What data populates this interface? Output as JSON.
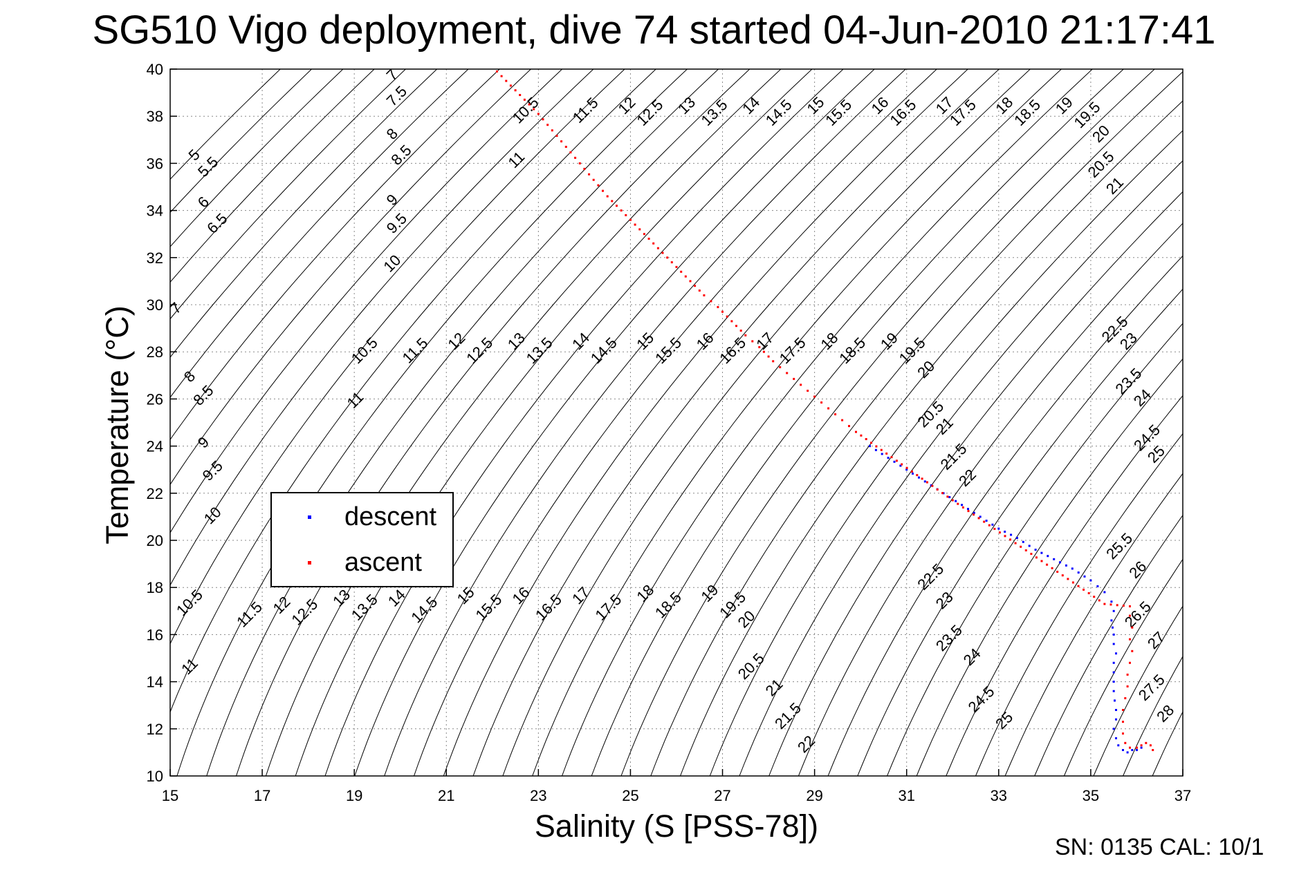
{
  "title": "SG510 Vigo deployment, dive 74 started 04-Jun-2010 21:17:41",
  "footer": "SN: 0135  CAL: 10/1",
  "legend": {
    "descent": "descent",
    "ascent": "ascent"
  },
  "colors": {
    "descent": "#0000ff",
    "ascent": "#ff0000",
    "contour": "#000000",
    "grid": "#888888"
  },
  "chart_data": {
    "type": "scatter",
    "title": "SG510 Vigo deployment, dive 74 started 04-Jun-2010 21:17:41",
    "xlabel": "Salinity (S [PSS-78])",
    "ylabel": "Temperature (°C)",
    "xlim": [
      15,
      37
    ],
    "ylim": [
      10,
      40
    ],
    "xticks": [
      15,
      17,
      19,
      21,
      23,
      25,
      27,
      29,
      31,
      33,
      35,
      37
    ],
    "yticks": [
      10,
      12,
      14,
      16,
      18,
      20,
      22,
      24,
      26,
      28,
      30,
      32,
      34,
      36,
      38,
      40
    ],
    "grid": true,
    "legend_position": "lower-left",
    "density_contours": [
      5,
      5.5,
      6,
      6.5,
      7,
      7.5,
      8,
      8.5,
      9,
      9.5,
      10,
      10.5,
      11,
      11.5,
      12,
      12.5,
      13,
      13.5,
      14,
      14.5,
      15,
      15.5,
      16,
      16.5,
      17,
      17.5,
      18,
      18.5,
      19,
      19.5,
      20,
      20.5,
      21,
      21.5,
      22,
      22.5,
      23,
      23.5,
      24,
      24.5,
      25,
      25.5,
      26,
      26.5,
      27,
      27.5,
      28
    ],
    "contour_labels": [
      {
        "text": "5",
        "x": 15.6,
        "y": 36.2
      },
      {
        "text": "5.5",
        "x": 15.9,
        "y": 35.7
      },
      {
        "text": "6",
        "x": 15.8,
        "y": 34.2
      },
      {
        "text": "6.5",
        "x": 16.1,
        "y": 33.3
      },
      {
        "text": "7",
        "x": 15.2,
        "y": 29.7
      },
      {
        "text": "8",
        "x": 15.5,
        "y": 26.8
      },
      {
        "text": "8.5",
        "x": 15.8,
        "y": 26.0
      },
      {
        "text": "9",
        "x": 15.8,
        "y": 24.0
      },
      {
        "text": "9.5",
        "x": 16.0,
        "y": 22.8
      },
      {
        "text": "10",
        "x": 16.0,
        "y": 20.9
      },
      {
        "text": "10.5",
        "x": 15.5,
        "y": 17.2
      },
      {
        "text": "11",
        "x": 15.5,
        "y": 14.5
      },
      {
        "text": "11.5",
        "x": 16.8,
        "y": 16.7
      },
      {
        "text": "12",
        "x": 17.5,
        "y": 17.1
      },
      {
        "text": "12.5",
        "x": 18.0,
        "y": 16.8
      },
      {
        "text": "13",
        "x": 18.8,
        "y": 17.4
      },
      {
        "text": "13.5",
        "x": 19.3,
        "y": 17.0
      },
      {
        "text": "14",
        "x": 20.0,
        "y": 17.4
      },
      {
        "text": "14.5",
        "x": 20.6,
        "y": 16.9
      },
      {
        "text": "15",
        "x": 21.5,
        "y": 17.5
      },
      {
        "text": "15.5",
        "x": 22.0,
        "y": 17.0
      },
      {
        "text": "16",
        "x": 22.7,
        "y": 17.5
      },
      {
        "text": "16.5",
        "x": 23.3,
        "y": 17.0
      },
      {
        "text": "17",
        "x": 24.0,
        "y": 17.5
      },
      {
        "text": "17.5",
        "x": 24.6,
        "y": 17.0
      },
      {
        "text": "18",
        "x": 25.4,
        "y": 17.6
      },
      {
        "text": "18.5",
        "x": 25.9,
        "y": 17.1
      },
      {
        "text": "19",
        "x": 26.8,
        "y": 17.6
      },
      {
        "text": "19.5",
        "x": 27.3,
        "y": 17.1
      },
      {
        "text": "20",
        "x": 27.6,
        "y": 16.5
      },
      {
        "text": "20.5",
        "x": 27.7,
        "y": 14.5
      },
      {
        "text": "21",
        "x": 28.2,
        "y": 13.6
      },
      {
        "text": "21.5",
        "x": 28.5,
        "y": 12.4
      },
      {
        "text": "22",
        "x": 28.9,
        "y": 11.2
      },
      {
        "text": "22.5",
        "x": 31.6,
        "y": 18.3
      },
      {
        "text": "23",
        "x": 31.9,
        "y": 17.3
      },
      {
        "text": "23.5",
        "x": 32.0,
        "y": 15.7
      },
      {
        "text": "24",
        "x": 32.5,
        "y": 14.9
      },
      {
        "text": "24.5",
        "x": 32.7,
        "y": 13.1
      },
      {
        "text": "25",
        "x": 33.2,
        "y": 12.2
      },
      {
        "text": "7",
        "x": 19.9,
        "y": 39.6
      },
      {
        "text": "7.5",
        "x": 20.0,
        "y": 38.7
      },
      {
        "text": "8",
        "x": 19.9,
        "y": 37.1
      },
      {
        "text": "8.5",
        "x": 20.1,
        "y": 36.2
      },
      {
        "text": "9",
        "x": 19.9,
        "y": 34.3
      },
      {
        "text": "9.5",
        "x": 20.0,
        "y": 33.3
      },
      {
        "text": "10",
        "x": 19.9,
        "y": 31.6
      },
      {
        "text": "10.5",
        "x": 22.8,
        "y": 38.1
      },
      {
        "text": "11",
        "x": 22.6,
        "y": 36.0
      },
      {
        "text": "11.5",
        "x": 24.1,
        "y": 38.1
      },
      {
        "text": "12",
        "x": 25.0,
        "y": 38.3
      },
      {
        "text": "12.5",
        "x": 25.5,
        "y": 38.0
      },
      {
        "text": "13",
        "x": 26.3,
        "y": 38.3
      },
      {
        "text": "13.5",
        "x": 26.9,
        "y": 38.0
      },
      {
        "text": "14",
        "x": 27.7,
        "y": 38.3
      },
      {
        "text": "14.5",
        "x": 28.3,
        "y": 38.0
      },
      {
        "text": "15",
        "x": 29.1,
        "y": 38.3
      },
      {
        "text": "15.5",
        "x": 29.6,
        "y": 38.0
      },
      {
        "text": "16",
        "x": 30.5,
        "y": 38.3
      },
      {
        "text": "16.5",
        "x": 31.0,
        "y": 38.0
      },
      {
        "text": "17",
        "x": 31.9,
        "y": 38.3
      },
      {
        "text": "17.5",
        "x": 32.3,
        "y": 38.0
      },
      {
        "text": "18",
        "x": 33.2,
        "y": 38.3
      },
      {
        "text": "18.5",
        "x": 33.7,
        "y": 38.0
      },
      {
        "text": "19",
        "x": 34.5,
        "y": 38.3
      },
      {
        "text": "19.5",
        "x": 35.0,
        "y": 37.9
      },
      {
        "text": "20",
        "x": 35.3,
        "y": 37.1
      },
      {
        "text": "20.5",
        "x": 35.3,
        "y": 35.8
      },
      {
        "text": "21",
        "x": 35.6,
        "y": 34.9
      },
      {
        "text": "10.5",
        "x": 19.3,
        "y": 27.9
      },
      {
        "text": "11",
        "x": 19.1,
        "y": 25.8
      },
      {
        "text": "11.5",
        "x": 20.4,
        "y": 27.9
      },
      {
        "text": "12",
        "x": 21.3,
        "y": 28.3
      },
      {
        "text": "12.5",
        "x": 21.8,
        "y": 27.9
      },
      {
        "text": "13",
        "x": 22.6,
        "y": 28.3
      },
      {
        "text": "13.5",
        "x": 23.1,
        "y": 27.9
      },
      {
        "text": "14",
        "x": 24.0,
        "y": 28.3
      },
      {
        "text": "14.5",
        "x": 24.5,
        "y": 27.9
      },
      {
        "text": "15",
        "x": 25.4,
        "y": 28.3
      },
      {
        "text": "15.5",
        "x": 25.9,
        "y": 27.9
      },
      {
        "text": "16",
        "x": 26.7,
        "y": 28.3
      },
      {
        "text": "16.5",
        "x": 27.3,
        "y": 27.9
      },
      {
        "text": "17",
        "x": 28.0,
        "y": 28.3
      },
      {
        "text": "17.5",
        "x": 28.6,
        "y": 27.9
      },
      {
        "text": "18",
        "x": 29.4,
        "y": 28.3
      },
      {
        "text": "18.5",
        "x": 29.9,
        "y": 27.9
      },
      {
        "text": "19",
        "x": 30.7,
        "y": 28.3
      },
      {
        "text": "19.5",
        "x": 31.2,
        "y": 27.9
      },
      {
        "text": "20",
        "x": 31.5,
        "y": 27.1
      },
      {
        "text": "20.5",
        "x": 31.6,
        "y": 25.2
      },
      {
        "text": "21",
        "x": 31.9,
        "y": 24.7
      },
      {
        "text": "21.5",
        "x": 32.1,
        "y": 23.4
      },
      {
        "text": "22",
        "x": 32.4,
        "y": 22.5
      },
      {
        "text": "22.5",
        "x": 35.6,
        "y": 28.8
      },
      {
        "text": "23",
        "x": 35.9,
        "y": 28.3
      },
      {
        "text": "23.5",
        "x": 35.9,
        "y": 26.6
      },
      {
        "text": "24",
        "x": 36.2,
        "y": 25.9
      },
      {
        "text": "24.5",
        "x": 36.3,
        "y": 24.2
      },
      {
        "text": "25",
        "x": 36.5,
        "y": 23.5
      },
      {
        "text": "25.5",
        "x": 35.7,
        "y": 19.6
      },
      {
        "text": "26",
        "x": 36.1,
        "y": 18.6
      },
      {
        "text": "26.5",
        "x": 36.1,
        "y": 16.7
      },
      {
        "text": "27",
        "x": 36.5,
        "y": 15.6
      },
      {
        "text": "27.5",
        "x": 36.4,
        "y": 13.6
      },
      {
        "text": "28",
        "x": 36.7,
        "y": 12.5
      }
    ],
    "series": [
      {
        "name": "descent",
        "points": [
          [
            30.2,
            24.0
          ],
          [
            30.6,
            23.5
          ],
          [
            31.0,
            23.0
          ],
          [
            31.4,
            22.5
          ],
          [
            31.8,
            22.0
          ],
          [
            32.2,
            21.5
          ],
          [
            32.6,
            21.0
          ],
          [
            33.0,
            20.5
          ],
          [
            33.4,
            20.1
          ],
          [
            33.8,
            19.6
          ],
          [
            34.2,
            19.2
          ],
          [
            34.6,
            18.8
          ],
          [
            35.0,
            18.3
          ],
          [
            35.3,
            17.8
          ],
          [
            35.45,
            17.4
          ],
          [
            35.5,
            17.0
          ],
          [
            35.45,
            16.6
          ],
          [
            35.5,
            16.0
          ],
          [
            35.5,
            15.6
          ],
          [
            35.55,
            15.2
          ],
          [
            35.5,
            14.8
          ],
          [
            35.5,
            14.4
          ],
          [
            35.5,
            14.0
          ],
          [
            35.5,
            13.6
          ],
          [
            35.52,
            13.2
          ],
          [
            35.55,
            12.8
          ],
          [
            35.55,
            12.4
          ],
          [
            35.5,
            12.0
          ],
          [
            35.55,
            11.6
          ],
          [
            35.6,
            11.3
          ],
          [
            35.7,
            11.1
          ],
          [
            35.8,
            11.0
          ],
          [
            35.9,
            11.1
          ],
          [
            36.0,
            11.1
          ],
          [
            36.1,
            11.2
          ]
        ]
      },
      {
        "name": "ascent",
        "points": [
          [
            22.1,
            39.9
          ],
          [
            22.4,
            39.3
          ],
          [
            22.7,
            38.7
          ],
          [
            23.0,
            38.1
          ],
          [
            23.3,
            37.4
          ],
          [
            23.6,
            36.7
          ],
          [
            23.9,
            36.0
          ],
          [
            24.2,
            35.3
          ],
          [
            24.5,
            34.6
          ],
          [
            24.8,
            34.0
          ],
          [
            25.1,
            33.4
          ],
          [
            25.4,
            32.8
          ],
          [
            25.7,
            32.2
          ],
          [
            26.0,
            31.6
          ],
          [
            26.3,
            31.0
          ],
          [
            26.6,
            30.4
          ],
          [
            26.9,
            29.9
          ],
          [
            27.2,
            29.3
          ],
          [
            27.5,
            28.7
          ],
          [
            27.8,
            28.2
          ],
          [
            28.1,
            27.6
          ],
          [
            28.4,
            27.1
          ],
          [
            28.7,
            26.6
          ],
          [
            29.0,
            26.1
          ],
          [
            29.3,
            25.6
          ],
          [
            29.6,
            25.1
          ],
          [
            29.9,
            24.6
          ],
          [
            32.0,
            21.7
          ],
          [
            35.3,
            17.3
          ],
          [
            35.85,
            17.2
          ],
          [
            35.85,
            16.8
          ],
          [
            35.9,
            16.3
          ],
          [
            35.85,
            15.8
          ],
          [
            35.9,
            15.3
          ],
          [
            35.85,
            14.8
          ],
          [
            35.8,
            14.3
          ],
          [
            35.8,
            13.8
          ],
          [
            35.75,
            13.3
          ],
          [
            35.7,
            12.8
          ],
          [
            35.7,
            12.3
          ],
          [
            35.7,
            11.8
          ],
          [
            35.75,
            11.4
          ],
          [
            35.85,
            11.2
          ],
          [
            36.0,
            11.2
          ],
          [
            36.1,
            11.3
          ],
          [
            36.2,
            11.4
          ],
          [
            36.3,
            11.3
          ],
          [
            36.35,
            11.1
          ]
        ]
      }
    ]
  }
}
